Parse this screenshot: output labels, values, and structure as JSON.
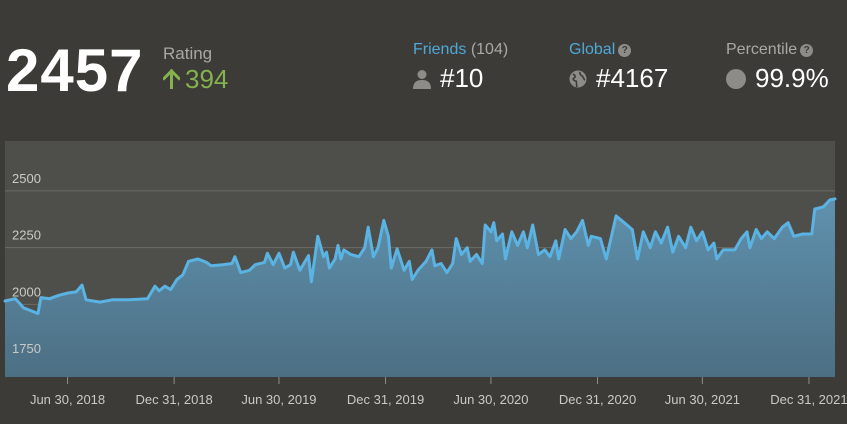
{
  "rating": {
    "value": "2457",
    "label": "Rating",
    "change": "394"
  },
  "stats": {
    "friends": {
      "label": "Friends",
      "count": "(104)",
      "rank": "#10"
    },
    "global": {
      "label": "Global",
      "rank": "#4167"
    },
    "percentile": {
      "label": "Percentile",
      "value": "99.9%"
    }
  },
  "colors": {
    "background": "#3c3b37",
    "link": "#4ea8d8",
    "positive": "#84b24e",
    "line": "#5ab3e3"
  },
  "chart_data": {
    "type": "area",
    "title": "",
    "xlabel": "",
    "ylabel": "",
    "ylim": [
      1680,
      2720
    ],
    "yticks": [
      1750,
      2000,
      2250,
      2500
    ],
    "xlim": [
      "2018-03-14",
      "2022-02-14"
    ],
    "xticks": [
      {
        "date": "2018-06-30",
        "label": "Jun 30, 2018"
      },
      {
        "date": "2018-12-31",
        "label": "Dec 31, 2018"
      },
      {
        "date": "2019-06-30",
        "label": "Jun 30, 2019"
      },
      {
        "date": "2019-12-31",
        "label": "Dec 31, 2019"
      },
      {
        "date": "2020-06-30",
        "label": "Jun 30, 2020"
      },
      {
        "date": "2020-12-31",
        "label": "Dec 31, 2020"
      },
      {
        "date": "2021-06-30",
        "label": "Jun 30, 2021"
      },
      {
        "date": "2021-12-31",
        "label": "Dec 31, 2021"
      }
    ],
    "series": [
      {
        "name": "Rating",
        "points": [
          [
            "2018-03-14",
            2015
          ],
          [
            "2018-04-01",
            2025
          ],
          [
            "2018-04-15",
            1985
          ],
          [
            "2018-05-10",
            1960
          ],
          [
            "2018-05-15",
            2030
          ],
          [
            "2018-05-30",
            2025
          ],
          [
            "2018-06-15",
            2040
          ],
          [
            "2018-07-01",
            2050
          ],
          [
            "2018-07-15",
            2055
          ],
          [
            "2018-07-25",
            2085
          ],
          [
            "2018-08-01",
            2020
          ],
          [
            "2018-08-25",
            2010
          ],
          [
            "2018-09-15",
            2020
          ],
          [
            "2018-10-15",
            2020
          ],
          [
            "2018-11-15",
            2025
          ],
          [
            "2018-11-28",
            2080
          ],
          [
            "2018-12-05",
            2060
          ],
          [
            "2018-12-15",
            2080
          ],
          [
            "2018-12-25",
            2065
          ],
          [
            "2019-01-05",
            2110
          ],
          [
            "2019-01-15",
            2130
          ],
          [
            "2019-01-25",
            2190
          ],
          [
            "2019-02-10",
            2200
          ],
          [
            "2019-02-25",
            2185
          ],
          [
            "2019-03-05",
            2170
          ],
          [
            "2019-03-25",
            2175
          ],
          [
            "2019-04-10",
            2180
          ],
          [
            "2019-04-15",
            2210
          ],
          [
            "2019-04-25",
            2140
          ],
          [
            "2019-05-10",
            2150
          ],
          [
            "2019-05-20",
            2175
          ],
          [
            "2019-06-05",
            2185
          ],
          [
            "2019-06-10",
            2225
          ],
          [
            "2019-06-20",
            2175
          ],
          [
            "2019-06-30",
            2225
          ],
          [
            "2019-07-10",
            2160
          ],
          [
            "2019-07-20",
            2175
          ],
          [
            "2019-07-25",
            2230
          ],
          [
            "2019-08-05",
            2150
          ],
          [
            "2019-08-20",
            2215
          ],
          [
            "2019-08-25",
            2100
          ],
          [
            "2019-09-05",
            2300
          ],
          [
            "2019-09-15",
            2210
          ],
          [
            "2019-09-20",
            2230
          ],
          [
            "2019-09-25",
            2160
          ],
          [
            "2019-10-05",
            2200
          ],
          [
            "2019-10-10",
            2260
          ],
          [
            "2019-10-15",
            2200
          ],
          [
            "2019-10-20",
            2240
          ],
          [
            "2019-11-01",
            2220
          ],
          [
            "2019-11-15",
            2210
          ],
          [
            "2019-11-25",
            2250
          ],
          [
            "2019-12-01",
            2340
          ],
          [
            "2019-12-10",
            2210
          ],
          [
            "2019-12-18",
            2250
          ],
          [
            "2019-12-28",
            2370
          ],
          [
            "2020-01-05",
            2300
          ],
          [
            "2020-01-10",
            2160
          ],
          [
            "2020-01-20",
            2245
          ],
          [
            "2020-02-01",
            2150
          ],
          [
            "2020-02-10",
            2190
          ],
          [
            "2020-02-15",
            2110
          ],
          [
            "2020-02-25",
            2150
          ],
          [
            "2020-03-10",
            2190
          ],
          [
            "2020-03-20",
            2240
          ],
          [
            "2020-03-25",
            2170
          ],
          [
            "2020-04-05",
            2180
          ],
          [
            "2020-04-15",
            2140
          ],
          [
            "2020-04-25",
            2180
          ],
          [
            "2020-05-01",
            2290
          ],
          [
            "2020-05-10",
            2220
          ],
          [
            "2020-05-20",
            2250
          ],
          [
            "2020-05-25",
            2190
          ],
          [
            "2020-06-05",
            2220
          ],
          [
            "2020-06-15",
            2180
          ],
          [
            "2020-06-20",
            2350
          ],
          [
            "2020-06-30",
            2320
          ],
          [
            "2020-07-05",
            2360
          ],
          [
            "2020-07-10",
            2280
          ],
          [
            "2020-07-20",
            2310
          ],
          [
            "2020-07-25",
            2200
          ],
          [
            "2020-08-05",
            2320
          ],
          [
            "2020-08-15",
            2260
          ],
          [
            "2020-08-25",
            2320
          ],
          [
            "2020-09-01",
            2250
          ],
          [
            "2020-09-10",
            2350
          ],
          [
            "2020-09-20",
            2220
          ],
          [
            "2020-10-01",
            2240
          ],
          [
            "2020-10-10",
            2210
          ],
          [
            "2020-10-20",
            2280
          ],
          [
            "2020-10-25",
            2200
          ],
          [
            "2020-11-05",
            2330
          ],
          [
            "2020-11-15",
            2290
          ],
          [
            "2020-11-25",
            2320
          ],
          [
            "2020-12-05",
            2370
          ],
          [
            "2020-12-15",
            2260
          ],
          [
            "2020-12-20",
            2300
          ],
          [
            "2021-01-05",
            2290
          ],
          [
            "2021-01-15",
            2200
          ],
          [
            "2021-01-25",
            2310
          ],
          [
            "2021-02-01",
            2390
          ],
          [
            "2021-02-15",
            2360
          ],
          [
            "2021-03-01",
            2330
          ],
          [
            "2021-03-10",
            2200
          ],
          [
            "2021-03-20",
            2320
          ],
          [
            "2021-04-01",
            2250
          ],
          [
            "2021-04-10",
            2320
          ],
          [
            "2021-04-20",
            2270
          ],
          [
            "2021-05-01",
            2340
          ],
          [
            "2021-05-10",
            2230
          ],
          [
            "2021-05-20",
            2300
          ],
          [
            "2021-06-01",
            2250
          ],
          [
            "2021-06-10",
            2340
          ],
          [
            "2021-06-20",
            2280
          ],
          [
            "2021-06-30",
            2320
          ],
          [
            "2021-07-10",
            2240
          ],
          [
            "2021-07-20",
            2270
          ],
          [
            "2021-07-25",
            2200
          ],
          [
            "2021-08-05",
            2240
          ],
          [
            "2021-08-25",
            2240
          ],
          [
            "2021-09-05",
            2290
          ],
          [
            "2021-09-15",
            2320
          ],
          [
            "2021-09-20",
            2250
          ],
          [
            "2021-10-01",
            2330
          ],
          [
            "2021-10-10",
            2290
          ],
          [
            "2021-10-20",
            2320
          ],
          [
            "2021-11-01",
            2290
          ],
          [
            "2021-11-15",
            2340
          ],
          [
            "2021-11-25",
            2360
          ],
          [
            "2021-12-05",
            2300
          ],
          [
            "2021-12-20",
            2310
          ],
          [
            "2022-01-05",
            2310
          ],
          [
            "2022-01-10",
            2420
          ],
          [
            "2022-01-25",
            2430
          ],
          [
            "2022-02-05",
            2460
          ],
          [
            "2022-02-14",
            2465
          ]
        ]
      }
    ]
  }
}
